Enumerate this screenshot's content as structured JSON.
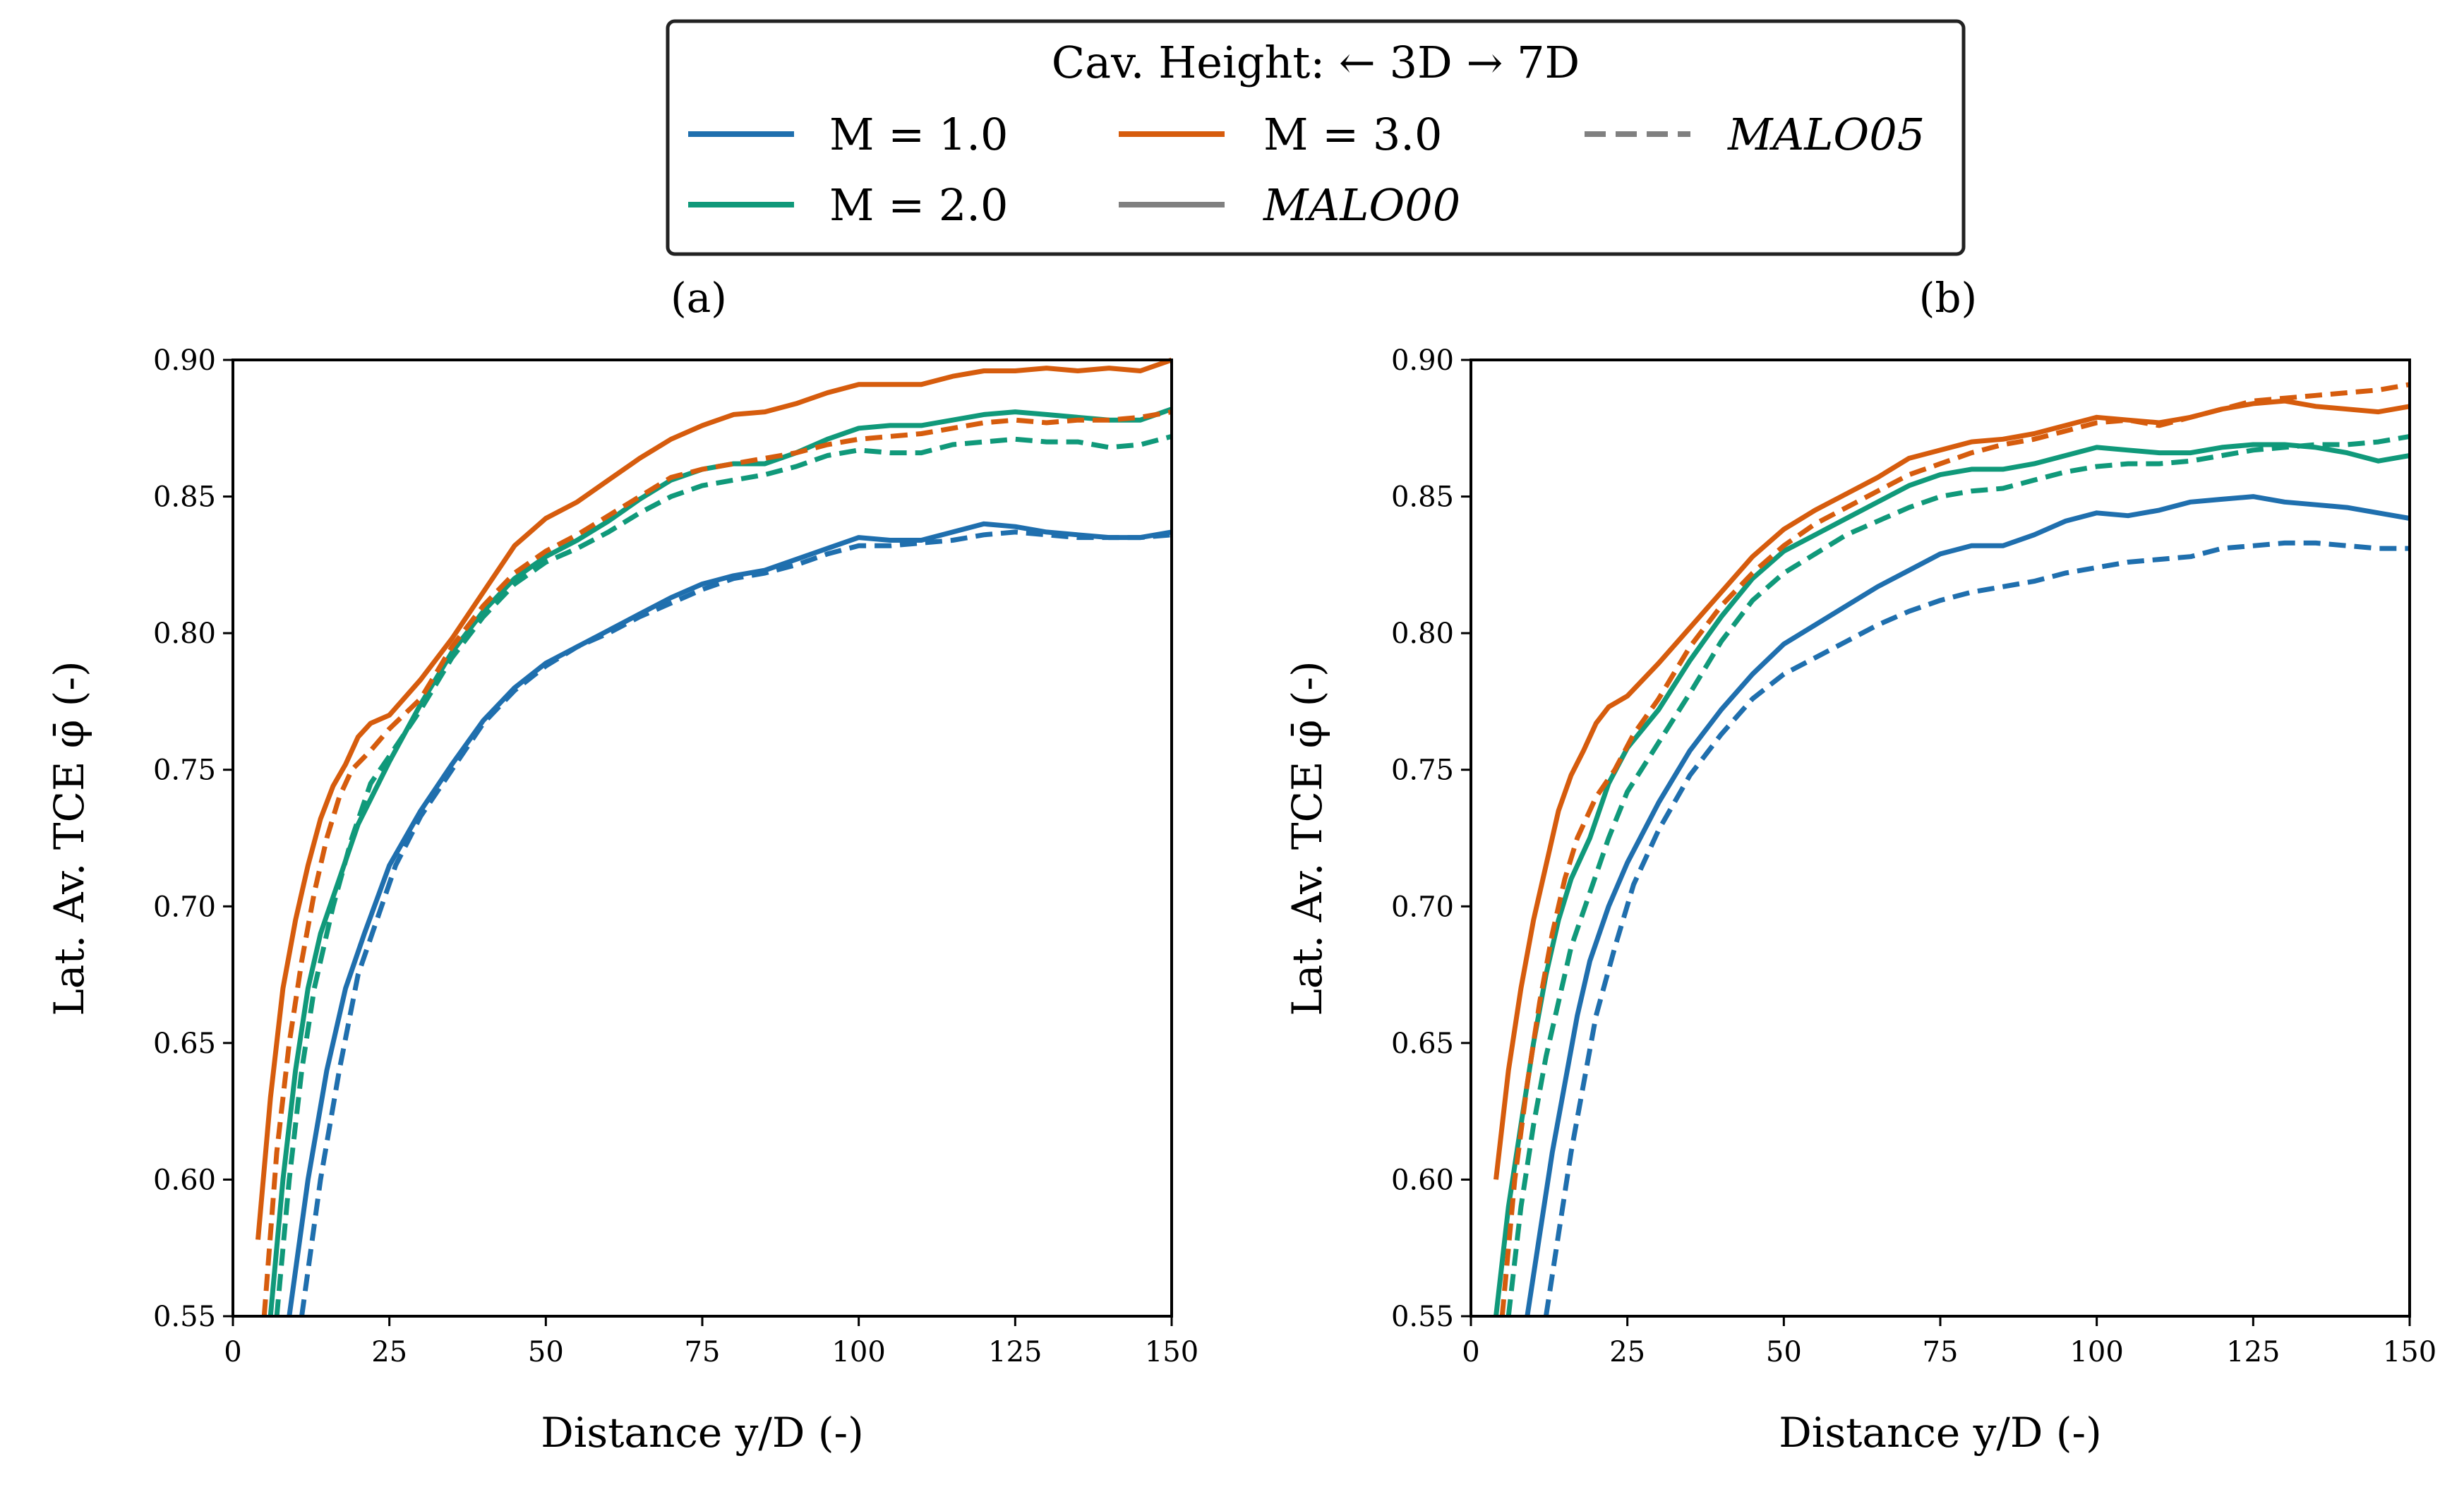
{
  "legend": {
    "title": "Cav. Height: ← 3D    → 7D",
    "entries": [
      {
        "label": "M = 1.0",
        "style": "solid",
        "color": "#1f6fae"
      },
      {
        "label": "M = 2.0",
        "style": "solid",
        "color": "#10997a"
      },
      {
        "label": "M = 3.0",
        "style": "solid",
        "color": "#d65c0d"
      },
      {
        "label": "MALO00",
        "style": "solid",
        "color": "#808080"
      },
      {
        "label": "MALO05",
        "style": "dashed",
        "color": "#808080"
      }
    ]
  },
  "chart_data": [
    {
      "panel": "(a)",
      "type": "line",
      "xlabel": "Distance y/D (-)",
      "ylabel": "Lat. Av. TCE φ̄ (-)",
      "xlim": [
        0,
        150
      ],
      "ylim": [
        0.55,
        0.9
      ],
      "xticks": [
        "0",
        "25",
        "50",
        "75",
        "100",
        "125",
        "150"
      ],
      "yticks": [
        "0.55",
        "0.60",
        "0.65",
        "0.70",
        "0.75",
        "0.80",
        "0.85",
        "0.90"
      ],
      "series": [
        {
          "name": "M = 1.0 MALO00",
          "color": "#1f6fae",
          "dash": false,
          "x": [
            9,
            12,
            15,
            18,
            21,
            25,
            30,
            35,
            40,
            45,
            50,
            55,
            60,
            65,
            70,
            75,
            80,
            85,
            90,
            95,
            100,
            105,
            110,
            115,
            120,
            125,
            130,
            135,
            140,
            145,
            150
          ],
          "y": [
            0.55,
            0.6,
            0.64,
            0.67,
            0.69,
            0.715,
            0.735,
            0.752,
            0.768,
            0.78,
            0.789,
            0.795,
            0.801,
            0.807,
            0.813,
            0.818,
            0.821,
            0.823,
            0.827,
            0.831,
            0.835,
            0.834,
            0.834,
            0.837,
            0.84,
            0.839,
            0.837,
            0.836,
            0.835,
            0.835,
            0.837
          ]
        },
        {
          "name": "M = 1.0 MALO05",
          "color": "#1f6fae",
          "dash": true,
          "x": [
            11,
            14,
            17,
            20,
            23,
            26,
            30,
            35,
            40,
            45,
            50,
            55,
            60,
            65,
            70,
            75,
            80,
            85,
            90,
            95,
            100,
            105,
            110,
            115,
            120,
            125,
            130,
            135,
            140,
            145,
            150
          ],
          "y": [
            0.55,
            0.6,
            0.64,
            0.675,
            0.695,
            0.715,
            0.733,
            0.75,
            0.767,
            0.779,
            0.788,
            0.795,
            0.8,
            0.806,
            0.811,
            0.816,
            0.82,
            0.822,
            0.825,
            0.829,
            0.832,
            0.832,
            0.833,
            0.834,
            0.836,
            0.837,
            0.836,
            0.835,
            0.835,
            0.835,
            0.836
          ]
        },
        {
          "name": "M = 2.0 MALO00",
          "color": "#10997a",
          "dash": false,
          "x": [
            6,
            8,
            10,
            12,
            14,
            17,
            20,
            25,
            30,
            35,
            40,
            45,
            50,
            55,
            60,
            65,
            70,
            75,
            80,
            85,
            90,
            95,
            100,
            105,
            110,
            115,
            120,
            125,
            130,
            135,
            140,
            145,
            150
          ],
          "y": [
            0.55,
            0.6,
            0.64,
            0.67,
            0.69,
            0.71,
            0.73,
            0.753,
            0.774,
            0.793,
            0.808,
            0.82,
            0.828,
            0.834,
            0.841,
            0.849,
            0.856,
            0.86,
            0.862,
            0.862,
            0.866,
            0.871,
            0.875,
            0.876,
            0.876,
            0.878,
            0.88,
            0.881,
            0.88,
            0.879,
            0.878,
            0.878,
            0.882
          ]
        },
        {
          "name": "M = 2.0 MALO05",
          "color": "#10997a",
          "dash": true,
          "x": [
            7,
            9,
            11,
            13,
            16,
            19,
            22,
            25,
            30,
            35,
            40,
            45,
            50,
            55,
            60,
            65,
            70,
            75,
            80,
            85,
            90,
            95,
            100,
            105,
            110,
            115,
            120,
            125,
            130,
            135,
            140,
            145,
            150
          ],
          "y": [
            0.55,
            0.6,
            0.64,
            0.67,
            0.7,
            0.725,
            0.745,
            0.755,
            0.772,
            0.791,
            0.806,
            0.818,
            0.826,
            0.831,
            0.837,
            0.844,
            0.85,
            0.854,
            0.856,
            0.858,
            0.861,
            0.865,
            0.867,
            0.866,
            0.866,
            0.869,
            0.87,
            0.871,
            0.87,
            0.87,
            0.868,
            0.869,
            0.872
          ]
        },
        {
          "name": "M = 3.0 MALO00",
          "color": "#d65c0d",
          "dash": false,
          "x": [
            4,
            6,
            8,
            10,
            12,
            14,
            16,
            18,
            20,
            22,
            25,
            30,
            35,
            40,
            45,
            50,
            55,
            60,
            65,
            70,
            75,
            80,
            85,
            90,
            95,
            100,
            105,
            110,
            115,
            120,
            125,
            130,
            135,
            140,
            145,
            150
          ],
          "y": [
            0.578,
            0.63,
            0.67,
            0.695,
            0.715,
            0.732,
            0.744,
            0.752,
            0.762,
            0.767,
            0.77,
            0.783,
            0.798,
            0.815,
            0.832,
            0.842,
            0.848,
            0.856,
            0.864,
            0.871,
            0.876,
            0.88,
            0.881,
            0.884,
            0.888,
            0.891,
            0.891,
            0.891,
            0.894,
            0.896,
            0.896,
            0.897,
            0.896,
            0.897,
            0.896,
            0.9
          ]
        },
        {
          "name": "M = 3.0 MALO05",
          "color": "#d65c0d",
          "dash": true,
          "x": [
            5,
            7,
            9,
            11,
            13,
            15,
            17,
            19,
            22,
            25,
            30,
            35,
            40,
            45,
            50,
            55,
            60,
            65,
            70,
            75,
            80,
            85,
            90,
            95,
            100,
            105,
            110,
            115,
            120,
            125,
            130,
            135,
            140,
            145,
            150
          ],
          "y": [
            0.55,
            0.61,
            0.65,
            0.68,
            0.705,
            0.725,
            0.74,
            0.75,
            0.757,
            0.765,
            0.776,
            0.795,
            0.81,
            0.822,
            0.83,
            0.836,
            0.843,
            0.85,
            0.857,
            0.86,
            0.862,
            0.864,
            0.866,
            0.869,
            0.871,
            0.872,
            0.873,
            0.875,
            0.877,
            0.878,
            0.877,
            0.878,
            0.878,
            0.879,
            0.881
          ]
        }
      ]
    },
    {
      "panel": "(b)",
      "type": "line",
      "xlabel": "Distance y/D (-)",
      "ylabel": "Lat. Av. TCE φ̄ (-)",
      "xlim": [
        0,
        150
      ],
      "ylim": [
        0.55,
        0.9
      ],
      "xticks": [
        "0",
        "25",
        "50",
        "75",
        "100",
        "125",
        "150"
      ],
      "yticks": [
        "0.55",
        "0.60",
        "0.65",
        "0.70",
        "0.75",
        "0.80",
        "0.85",
        "0.90"
      ],
      "series": [
        {
          "name": "M = 1.0 MALO00",
          "color": "#1f6fae",
          "dash": false,
          "x": [
            9,
            11,
            13,
            15,
            17,
            19,
            22,
            25,
            30,
            35,
            40,
            45,
            50,
            55,
            60,
            65,
            70,
            75,
            80,
            85,
            90,
            95,
            100,
            105,
            110,
            115,
            120,
            125,
            130,
            135,
            140,
            145,
            150
          ],
          "y": [
            0.55,
            0.58,
            0.61,
            0.635,
            0.66,
            0.68,
            0.7,
            0.716,
            0.738,
            0.757,
            0.772,
            0.785,
            0.796,
            0.803,
            0.81,
            0.817,
            0.823,
            0.829,
            0.832,
            0.832,
            0.836,
            0.841,
            0.844,
            0.843,
            0.845,
            0.848,
            0.849,
            0.85,
            0.848,
            0.847,
            0.846,
            0.844,
            0.842
          ]
        },
        {
          "name": "M = 1.0 MALO05",
          "color": "#1f6fae",
          "dash": true,
          "x": [
            12,
            14,
            16,
            18,
            20,
            23,
            26,
            30,
            35,
            40,
            45,
            50,
            55,
            60,
            65,
            70,
            75,
            80,
            85,
            90,
            95,
            100,
            105,
            110,
            115,
            120,
            125,
            130,
            135,
            140,
            145,
            150
          ],
          "y": [
            0.55,
            0.58,
            0.61,
            0.635,
            0.66,
            0.685,
            0.708,
            0.728,
            0.748,
            0.763,
            0.776,
            0.785,
            0.791,
            0.797,
            0.803,
            0.808,
            0.812,
            0.815,
            0.817,
            0.819,
            0.822,
            0.824,
            0.826,
            0.827,
            0.828,
            0.831,
            0.832,
            0.833,
            0.833,
            0.832,
            0.831,
            0.831
          ]
        },
        {
          "name": "M = 2.0 MALO00",
          "color": "#10997a",
          "dash": false,
          "x": [
            4,
            6,
            8,
            10,
            12,
            14,
            16,
            19,
            22,
            25,
            30,
            35,
            40,
            45,
            50,
            55,
            60,
            65,
            70,
            75,
            80,
            85,
            90,
            95,
            100,
            105,
            110,
            115,
            120,
            125,
            130,
            135,
            140,
            145,
            150
          ],
          "y": [
            0.55,
            0.59,
            0.62,
            0.65,
            0.675,
            0.695,
            0.71,
            0.725,
            0.745,
            0.758,
            0.772,
            0.79,
            0.806,
            0.82,
            0.83,
            0.836,
            0.842,
            0.848,
            0.854,
            0.858,
            0.86,
            0.86,
            0.862,
            0.865,
            0.868,
            0.867,
            0.866,
            0.866,
            0.868,
            0.869,
            0.869,
            0.868,
            0.866,
            0.863,
            0.865
          ]
        },
        {
          "name": "M = 2.0 MALO05",
          "color": "#10997a",
          "dash": true,
          "x": [
            6,
            8,
            10,
            12,
            14,
            16,
            19,
            22,
            25,
            30,
            35,
            40,
            45,
            50,
            55,
            60,
            65,
            70,
            75,
            80,
            85,
            90,
            95,
            100,
            105,
            110,
            115,
            120,
            125,
            130,
            135,
            140,
            145,
            150
          ],
          "y": [
            0.55,
            0.59,
            0.62,
            0.645,
            0.665,
            0.685,
            0.705,
            0.725,
            0.742,
            0.76,
            0.778,
            0.797,
            0.812,
            0.822,
            0.829,
            0.836,
            0.841,
            0.846,
            0.85,
            0.852,
            0.853,
            0.856,
            0.859,
            0.861,
            0.862,
            0.862,
            0.863,
            0.865,
            0.867,
            0.868,
            0.869,
            0.869,
            0.87,
            0.872
          ]
        },
        {
          "name": "M = 3.0 MALO00",
          "color": "#d65c0d",
          "dash": false,
          "x": [
            4,
            6,
            8,
            10,
            12,
            14,
            16,
            18,
            20,
            22,
            25,
            30,
            35,
            40,
            45,
            50,
            55,
            60,
            65,
            70,
            75,
            80,
            85,
            90,
            95,
            100,
            105,
            110,
            115,
            120,
            125,
            130,
            135,
            140,
            145,
            150
          ],
          "y": [
            0.6,
            0.64,
            0.67,
            0.695,
            0.715,
            0.735,
            0.748,
            0.757,
            0.767,
            0.773,
            0.777,
            0.789,
            0.802,
            0.815,
            0.828,
            0.838,
            0.845,
            0.851,
            0.857,
            0.864,
            0.867,
            0.87,
            0.871,
            0.873,
            0.876,
            0.879,
            0.878,
            0.877,
            0.879,
            0.882,
            0.884,
            0.885,
            0.883,
            0.882,
            0.881,
            0.883
          ]
        },
        {
          "name": "M = 3.0 MALO05",
          "color": "#d65c0d",
          "dash": true,
          "x": [
            5,
            7,
            9,
            11,
            13,
            15,
            17,
            20,
            23,
            26,
            30,
            35,
            40,
            45,
            50,
            55,
            60,
            65,
            70,
            75,
            80,
            85,
            90,
            95,
            100,
            105,
            110,
            115,
            120,
            125,
            130,
            135,
            140,
            145,
            150
          ],
          "y": [
            0.55,
            0.6,
            0.635,
            0.665,
            0.69,
            0.71,
            0.725,
            0.74,
            0.75,
            0.763,
            0.776,
            0.795,
            0.81,
            0.822,
            0.832,
            0.84,
            0.846,
            0.852,
            0.858,
            0.862,
            0.866,
            0.869,
            0.871,
            0.874,
            0.877,
            0.878,
            0.876,
            0.879,
            0.882,
            0.885,
            0.886,
            0.887,
            0.888,
            0.889,
            0.891
          ]
        }
      ]
    }
  ]
}
